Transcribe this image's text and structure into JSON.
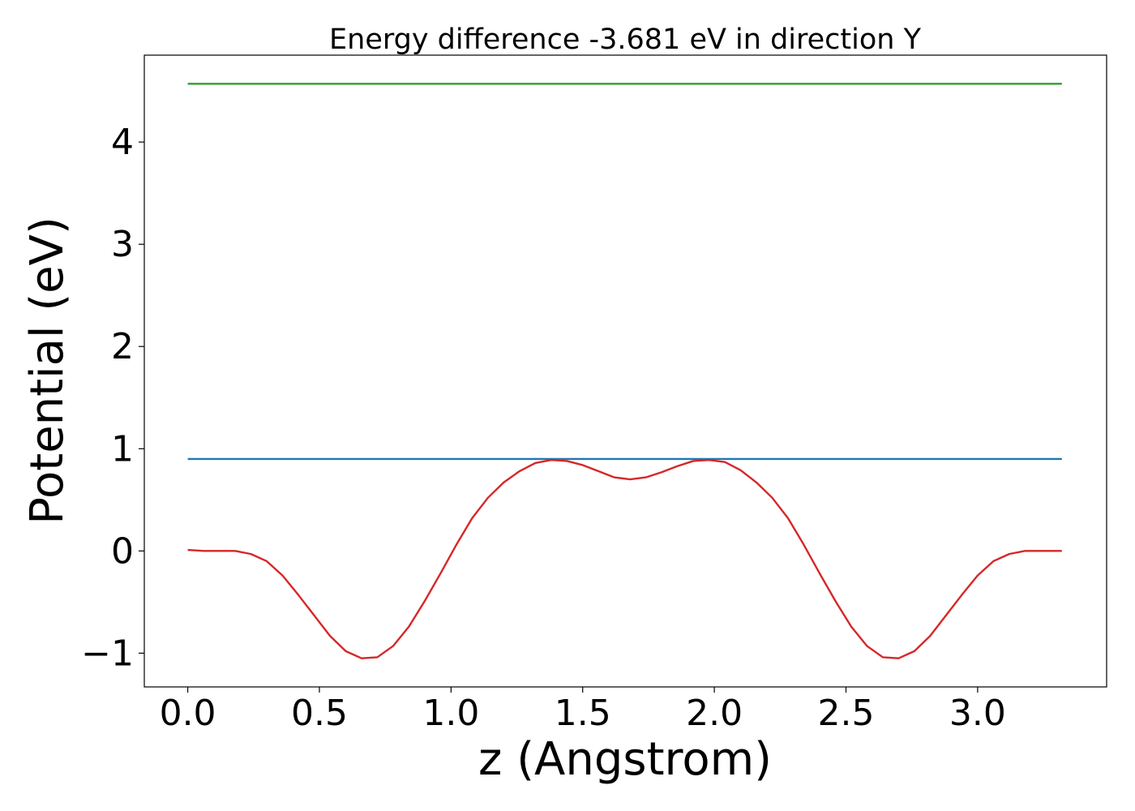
{
  "chart_data": {
    "type": "line",
    "title": "Energy difference -3.681 eV in direction Y",
    "xlabel": "z (Angstrom)",
    "ylabel": "Potential (eV)",
    "xlim": [
      -0.165,
      3.49
    ],
    "ylim": [
      -1.33,
      4.85
    ],
    "xticks": [
      0.0,
      0.5,
      1.0,
      1.5,
      2.0,
      2.5,
      3.0
    ],
    "xtick_labels": [
      "0.0",
      "0.5",
      "1.0",
      "1.5",
      "2.0",
      "2.5",
      "3.0"
    ],
    "yticks": [
      -1,
      0,
      1,
      2,
      3,
      4
    ],
    "ytick_labels": [
      "−1",
      "0",
      "1",
      "2",
      "3",
      "4"
    ],
    "grid": false,
    "series": [
      {
        "color": "#2ca02c",
        "x": [
          0.0,
          3.32
        ],
        "y": [
          4.57,
          4.57
        ]
      },
      {
        "color": "#1f77b4",
        "x": [
          0.0,
          3.32
        ],
        "y": [
          0.9,
          0.9
        ]
      },
      {
        "color": "#d62728",
        "x": [
          0.0,
          0.06,
          0.12,
          0.18,
          0.24,
          0.3,
          0.36,
          0.42,
          0.48,
          0.54,
          0.6,
          0.66,
          0.72,
          0.78,
          0.84,
          0.9,
          0.96,
          1.02,
          1.08,
          1.14,
          1.2,
          1.26,
          1.32,
          1.38,
          1.44,
          1.5,
          1.56,
          1.62,
          1.68,
          1.74,
          1.8,
          1.86,
          1.92,
          1.98,
          2.04,
          2.1,
          2.16,
          2.22,
          2.28,
          2.34,
          2.4,
          2.46,
          2.52,
          2.58,
          2.64,
          2.7,
          2.76,
          2.82,
          2.88,
          2.94,
          3.0,
          3.06,
          3.12,
          3.18,
          3.24,
          3.32
        ],
        "y": [
          0.01,
          0.0,
          0.0,
          0.0,
          -0.03,
          -0.1,
          -0.24,
          -0.43,
          -0.63,
          -0.83,
          -0.98,
          -1.05,
          -1.04,
          -0.93,
          -0.74,
          -0.49,
          -0.22,
          0.06,
          0.32,
          0.52,
          0.67,
          0.78,
          0.86,
          0.89,
          0.88,
          0.84,
          0.78,
          0.72,
          0.7,
          0.72,
          0.77,
          0.83,
          0.88,
          0.89,
          0.87,
          0.79,
          0.67,
          0.52,
          0.32,
          0.06,
          -0.22,
          -0.49,
          -0.74,
          -0.93,
          -1.04,
          -1.05,
          -0.98,
          -0.83,
          -0.63,
          -0.43,
          -0.24,
          -0.1,
          -0.03,
          0.0,
          0.0,
          0.0
        ]
      }
    ]
  }
}
